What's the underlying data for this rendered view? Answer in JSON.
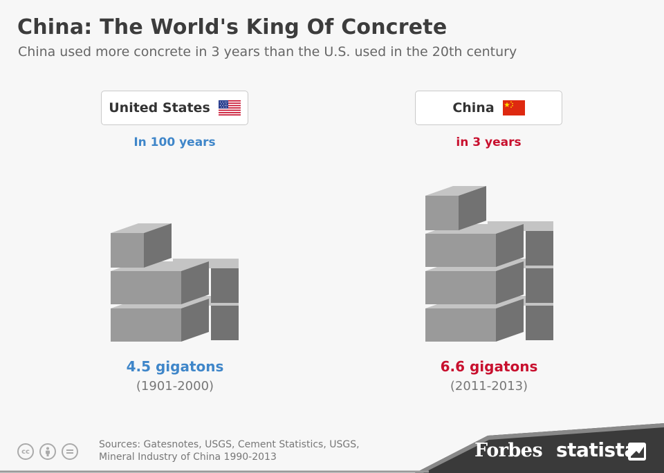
{
  "title": "China: The World's King Of Concrete",
  "subtitle": "China used more concrete in 3 years than the U.S. used in the 20th century",
  "colors": {
    "us": "#3f86c9",
    "china": "#c8102e",
    "block": "#9a9a9a"
  },
  "chart_data": {
    "type": "pictogram",
    "title": "China: The World's King Of Concrete",
    "unit": "gigatons",
    "series": [
      {
        "name": "United States",
        "period_label": "In 100 years",
        "value": 4.5,
        "value_label": "4.5 gigatons",
        "years": "(1901-2000)",
        "flag": "us-flag-icon"
      },
      {
        "name": "China",
        "period_label": "in 3 years",
        "value": 6.6,
        "value_label": "6.6 gigatons",
        "years": "(2011-2013)",
        "flag": "china-flag-icon"
      }
    ]
  },
  "footer": {
    "sources_line1": "Sources: Gatesnotes, USGS, Cement Statistics, USGS,",
    "sources_line2": "Mineral Industry of China 1990-2013",
    "icons": [
      "creative-commons-icon",
      "attribution-icon",
      "no-derivatives-icon"
    ],
    "forbes": "Forbes",
    "statista": "statista"
  }
}
